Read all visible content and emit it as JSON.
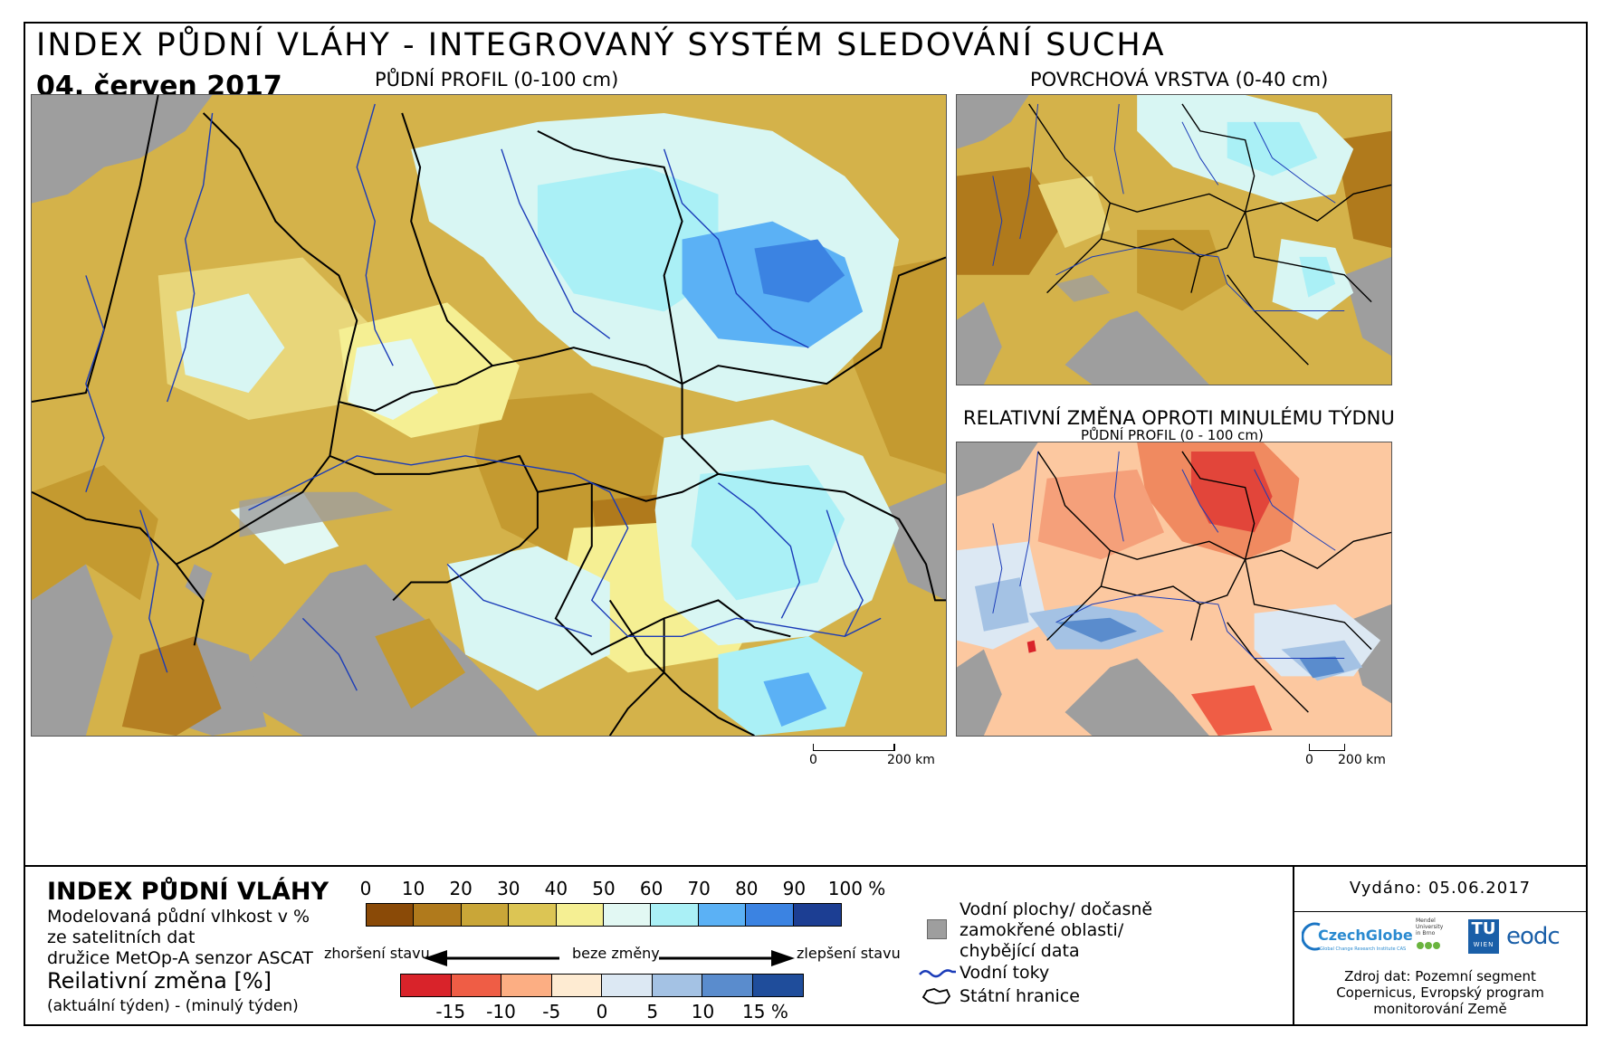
{
  "header": {
    "title": "INDEX PŮDNÍ VLÁHY - INTEGROVANÝ SYSTÉM SLEDOVÁNÍ SUCHA",
    "date": "04. červen 2017"
  },
  "maps": {
    "main": {
      "label": "PŮDNÍ PROFIL (0-100 cm)"
    },
    "surface": {
      "label": "POVRCHOVÁ VRSTVA (0-40 cm)"
    },
    "change": {
      "label": "RELATIVNÍ ZMĚNA OPROTI MINULÉMU TÝDNU",
      "sublabel": "PŮDNÍ PROFIL (0 - 100 cm)"
    }
  },
  "scalebars": {
    "main": {
      "start": "0",
      "end": "200 km"
    },
    "change": {
      "start": "0",
      "end": "200 km"
    }
  },
  "legend": {
    "title": "INDEX PŮDNÍ VLÁHY",
    "description_lines": [
      "Modelovaná půdní vlhkost v %",
      "ze satelitních dat",
      "družice MetOp-A senzor ASCAT"
    ],
    "change_title": "Reilativní změna [%]",
    "change_subtitle": "(aktuální týden) - (minulý týden)",
    "moisture_scale": {
      "ticks": [
        "0",
        "10",
        "20",
        "30",
        "40",
        "50",
        "60",
        "70",
        "80",
        "90",
        "100 %"
      ],
      "colors": [
        "#8a4a07",
        "#b07a1c",
        "#c9a638",
        "#dcc554",
        "#f5ef93",
        "#e2f8f3",
        "#aaf0f6",
        "#5bb1f5",
        "#3b83e2",
        "#1c3e93"
      ]
    },
    "change_scale": {
      "ticks": [
        "-15",
        "-10",
        "-5",
        "0",
        "5",
        "10",
        "15 %"
      ],
      "colors": [
        "#d9232a",
        "#ef5d45",
        "#fcae83",
        "#feebd2",
        "#dce8f3",
        "#a4c2e4",
        "#5a8ccd",
        "#1f4d9b"
      ]
    },
    "arrows": {
      "worse": "zhoršení stavu",
      "nochange": "beze změny",
      "better": "zlepšení stavu"
    },
    "symbols": {
      "water_lines": [
        "Vodní plochy/ dočasně",
        "zamokřené oblasti/",
        "chybějící data"
      ],
      "rivers": "Vodní toky",
      "borders": "Státní hranice",
      "grey": "#9e9e9e",
      "river_color": "#1a3bb8"
    }
  },
  "footer": {
    "issued": "Vydáno: 05.06.2017",
    "logos": {
      "czechglobe": "CzechGlobe",
      "czechglobe_sub": "Global Change Research Institute CAS",
      "mendel_lines": [
        "Mendel",
        "University",
        "in Brno"
      ],
      "tu_top": "TU",
      "tu_bottom": "WIEN",
      "eodc": "eodc"
    },
    "source_lines": [
      "Zdroj dat: Pozemní segment",
      "Copernicus, Evropský program",
      "monitorování Země"
    ]
  }
}
